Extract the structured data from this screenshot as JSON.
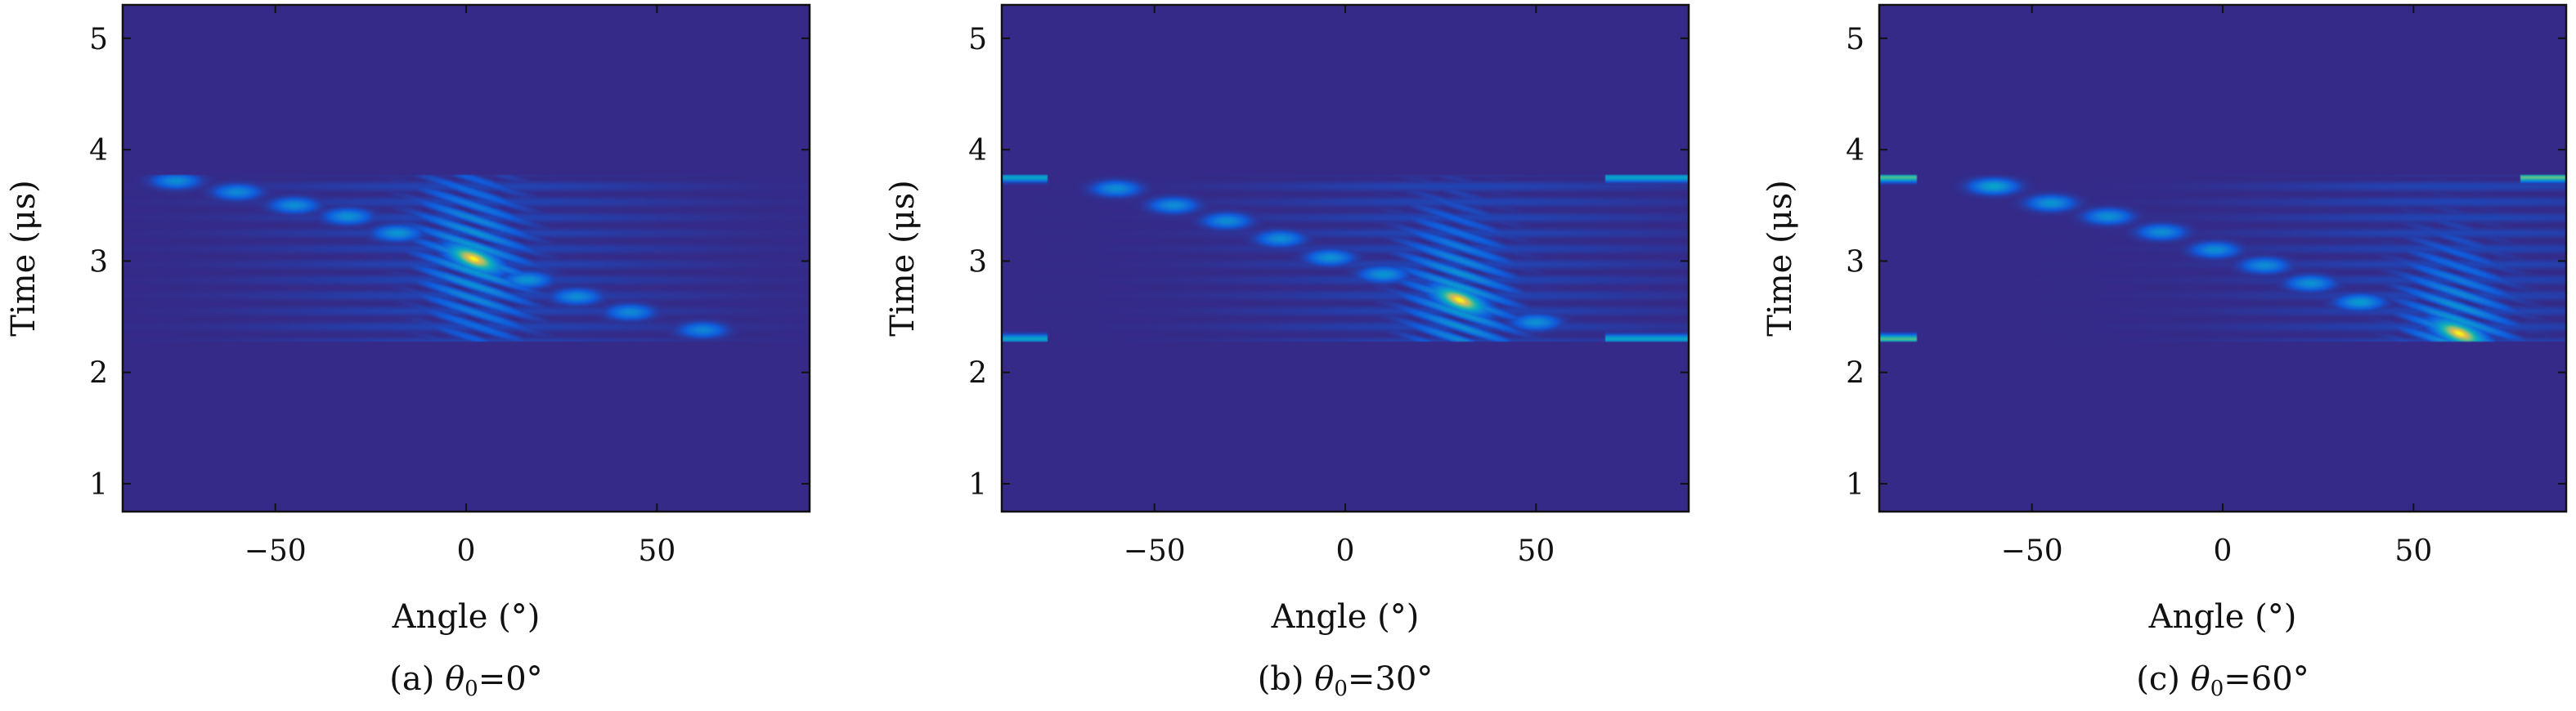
{
  "colors": {
    "background": "#34348c",
    "frame": "#111111"
  },
  "chart_data": [
    {
      "type": "heatmap",
      "caption_prefix": "(a)",
      "caption_theta": "θ",
      "caption_sub": "0",
      "caption_value": "=0°",
      "xlabel": "Angle (°)",
      "ylabel": "Time (μs)",
      "xlim": [
        -90,
        90
      ],
      "ylim": [
        0.75,
        5.3
      ],
      "xticks": [
        -50,
        0,
        50
      ],
      "yticks": [
        1,
        2,
        3,
        4,
        5
      ],
      "xtick_labels": [
        "−50",
        "0",
        "50"
      ],
      "ytick_labels": [
        "1",
        "2",
        "3",
        "4",
        "5"
      ],
      "colormap": "parula",
      "signal_window_us": [
        2.27,
        3.77
      ],
      "steering_angle_deg": 0,
      "peak": {
        "angle_deg": 2,
        "time_us": 3.02,
        "intensity": 1.0
      },
      "lobes": [
        {
          "angle_deg": -76,
          "time_us": 3.72,
          "intensity": 0.38
        },
        {
          "angle_deg": -60,
          "time_us": 3.62,
          "intensity": 0.36
        },
        {
          "angle_deg": -45,
          "time_us": 3.5,
          "intensity": 0.38
        },
        {
          "angle_deg": -31,
          "time_us": 3.4,
          "intensity": 0.4
        },
        {
          "angle_deg": -18,
          "time_us": 3.25,
          "intensity": 0.42
        },
        {
          "angle_deg": 16,
          "time_us": 2.83,
          "intensity": 0.42
        },
        {
          "angle_deg": 29,
          "time_us": 2.68,
          "intensity": 0.38
        },
        {
          "angle_deg": 43,
          "time_us": 2.54,
          "intensity": 0.36
        },
        {
          "angle_deg": 62,
          "time_us": 2.38,
          "intensity": 0.34
        }
      ],
      "edge_streaks": []
    },
    {
      "type": "heatmap",
      "caption_prefix": "(b)",
      "caption_theta": "θ",
      "caption_sub": "0",
      "caption_value": "=30°",
      "xlabel": "Angle (°)",
      "ylabel": "Time (μs)",
      "xlim": [
        -90,
        90
      ],
      "ylim": [
        0.75,
        5.3
      ],
      "xticks": [
        -50,
        0,
        50
      ],
      "yticks": [
        1,
        2,
        3,
        4,
        5
      ],
      "xtick_labels": [
        "−50",
        "0",
        "50"
      ],
      "ytick_labels": [
        "1",
        "2",
        "3",
        "4",
        "5"
      ],
      "colormap": "parula",
      "signal_window_us": [
        2.27,
        3.77
      ],
      "steering_angle_deg": 30,
      "peak": {
        "angle_deg": 30,
        "time_us": 2.65,
        "intensity": 1.0
      },
      "lobes": [
        {
          "angle_deg": -60,
          "time_us": 3.65,
          "intensity": 0.38
        },
        {
          "angle_deg": -45,
          "time_us": 3.5,
          "intensity": 0.38
        },
        {
          "angle_deg": -31,
          "time_us": 3.36,
          "intensity": 0.38
        },
        {
          "angle_deg": -17,
          "time_us": 3.2,
          "intensity": 0.38
        },
        {
          "angle_deg": -4,
          "time_us": 3.03,
          "intensity": 0.4
        },
        {
          "angle_deg": 10,
          "time_us": 2.88,
          "intensity": 0.42
        },
        {
          "angle_deg": 50,
          "time_us": 2.45,
          "intensity": 0.4
        }
      ],
      "edge_streaks": [
        {
          "angle_from": -90,
          "angle_to": -78,
          "time_us": 3.75,
          "intensity": 0.5
        },
        {
          "angle_from": -90,
          "angle_to": -78,
          "time_us": 2.3,
          "intensity": 0.5
        },
        {
          "angle_from": 68,
          "angle_to": 90,
          "time_us": 3.75,
          "intensity": 0.5
        },
        {
          "angle_from": 68,
          "angle_to": 90,
          "time_us": 2.3,
          "intensity": 0.5
        }
      ]
    },
    {
      "type": "heatmap",
      "caption_prefix": "(c)",
      "caption_theta": "θ",
      "caption_sub": "0",
      "caption_value": "=60°",
      "xlabel": "Angle (°)",
      "ylabel": "Time (μs)",
      "xlim": [
        -90,
        90
      ],
      "ylim": [
        0.75,
        5.3
      ],
      "xticks": [
        -50,
        0,
        50
      ],
      "yticks": [
        1,
        2,
        3,
        4,
        5
      ],
      "xtick_labels": [
        "−50",
        "0",
        "50"
      ],
      "ytick_labels": [
        "1",
        "2",
        "3",
        "4",
        "5"
      ],
      "colormap": "parula",
      "signal_window_us": [
        2.27,
        3.77
      ],
      "steering_angle_deg": 60,
      "peak": {
        "angle_deg": 62,
        "time_us": 2.35,
        "intensity": 1.0
      },
      "lobes": [
        {
          "angle_deg": -60,
          "time_us": 3.67,
          "intensity": 0.5
        },
        {
          "angle_deg": -45,
          "time_us": 3.52,
          "intensity": 0.42
        },
        {
          "angle_deg": -30,
          "time_us": 3.4,
          "intensity": 0.4
        },
        {
          "angle_deg": -16,
          "time_us": 3.26,
          "intensity": 0.38
        },
        {
          "angle_deg": -2,
          "time_us": 3.1,
          "intensity": 0.38
        },
        {
          "angle_deg": 11,
          "time_us": 2.96,
          "intensity": 0.38
        },
        {
          "angle_deg": 23,
          "time_us": 2.8,
          "intensity": 0.4
        },
        {
          "angle_deg": 36,
          "time_us": 2.63,
          "intensity": 0.45
        }
      ],
      "edge_streaks": [
        {
          "angle_from": -90,
          "angle_to": -80,
          "time_us": 3.75,
          "intensity": 0.72
        },
        {
          "angle_from": -90,
          "angle_to": -80,
          "time_us": 2.3,
          "intensity": 0.72
        },
        {
          "angle_from": 78,
          "angle_to": 90,
          "time_us": 3.75,
          "intensity": 0.75
        }
      ]
    }
  ]
}
